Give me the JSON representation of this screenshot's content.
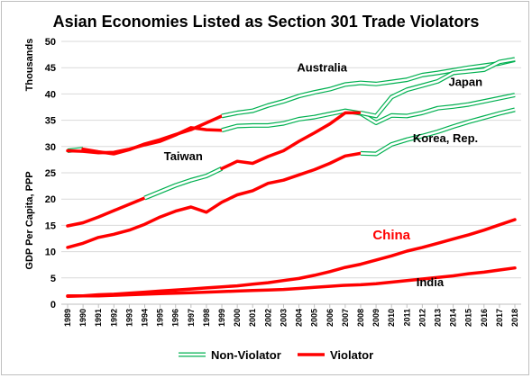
{
  "chart_data": {
    "type": "line",
    "title": "Asian Economies Listed as Section 301 Trade Violators",
    "ylabel": "GDP Per Capita, PPP",
    "y_units_label": "Thousands",
    "xlabel": "",
    "ylim": [
      0,
      50
    ],
    "yticks": [
      0,
      5,
      10,
      15,
      20,
      25,
      30,
      35,
      40,
      45,
      50
    ],
    "x": [
      1989,
      1990,
      1991,
      1992,
      1993,
      1994,
      1995,
      1996,
      1997,
      1998,
      1999,
      2000,
      2001,
      2002,
      2003,
      2004,
      2005,
      2006,
      2007,
      2008,
      2009,
      2010,
      2011,
      2012,
      2013,
      2014,
      2015,
      2016,
      2017,
      2018
    ],
    "grid": true,
    "legend_position": "bottom",
    "colors": {
      "non_violator": "#00b050",
      "violator": "#ff0000",
      "china_label": "#ff0000"
    },
    "legend": [
      {
        "label": "Non-Violator",
        "style": "hollow"
      },
      {
        "label": "Violator",
        "style": "solid"
      }
    ],
    "series": [
      {
        "name": "Australia",
        "values": [
          29.2,
          29.5,
          29.0,
          28.6,
          29.4,
          30.5,
          31.3,
          32.3,
          33.2,
          34.5,
          35.8,
          36.4,
          36.8,
          37.8,
          38.6,
          39.6,
          40.3,
          40.9,
          41.8,
          42.1,
          41.9,
          42.3,
          42.7,
          43.6,
          44.0,
          44.5,
          45.0,
          45.4,
          45.8,
          46.5
        ],
        "status": [
          "nv",
          "nv",
          "v",
          "v",
          "v",
          "v",
          "v",
          "v",
          "v",
          "v",
          "v",
          "nv",
          "nv",
          "nv",
          "nv",
          "nv",
          "nv",
          "nv",
          "nv",
          "nv",
          "nv",
          "nv",
          "nv",
          "nv",
          "nv",
          "nv",
          "nv",
          "nv",
          "nv",
          "nv"
        ]
      },
      {
        "name": "Japan",
        "values": [
          29.2,
          29.1,
          28.8,
          28.9,
          29.5,
          30.3,
          31.0,
          32.2,
          33.6,
          33.2,
          33.1,
          33.9,
          34.0,
          34.0,
          34.4,
          35.2,
          35.6,
          36.2,
          36.8,
          36.3,
          34.5,
          35.9,
          35.8,
          36.4,
          37.3,
          37.6,
          38.0,
          38.6,
          39.2,
          39.8
        ],
        "status": [
          "v",
          "v",
          "v",
          "v",
          "v",
          "v",
          "v",
          "v",
          "v",
          "v",
          "v",
          "nv",
          "nv",
          "nv",
          "nv",
          "nv",
          "nv",
          "nv",
          "nv",
          "nv",
          "nv",
          "nv",
          "nv",
          "nv",
          "nv",
          "nv",
          "nv",
          "nv",
          "nv",
          "nv"
        ]
      },
      {
        "name": "Taiwan",
        "values": [
          14.9,
          15.5,
          16.6,
          17.8,
          19.0,
          20.2,
          21.4,
          22.6,
          23.6,
          24.4,
          25.8,
          27.2,
          26.8,
          28.1,
          29.2,
          31.0,
          32.6,
          34.3,
          36.4,
          36.4,
          35.8,
          39.4,
          40.8,
          41.6,
          42.4,
          44.0,
          44.3,
          44.6,
          46.1,
          46.6
        ],
        "status": [
          "v",
          "v",
          "v",
          "v",
          "v",
          "v",
          "nv",
          "nv",
          "nv",
          "nv",
          "nv",
          "v",
          "v",
          "v",
          "v",
          "v",
          "v",
          "v",
          "v",
          "v",
          "nv",
          "nv",
          "nv",
          "nv",
          "nv",
          "nv",
          "nv",
          "nv",
          "nv",
          "nv"
        ]
      },
      {
        "name": "Korea, Rep.",
        "values": [
          10.8,
          11.6,
          12.7,
          13.3,
          14.1,
          15.2,
          16.6,
          17.7,
          18.5,
          17.5,
          19.4,
          20.8,
          21.6,
          23.0,
          23.6,
          24.6,
          25.6,
          26.8,
          28.2,
          28.7,
          28.6,
          30.4,
          31.3,
          32.0,
          32.8,
          33.8,
          34.7,
          35.5,
          36.3,
          37.0
        ],
        "status": [
          "v",
          "v",
          "v",
          "v",
          "v",
          "v",
          "v",
          "v",
          "v",
          "v",
          "v",
          "v",
          "v",
          "v",
          "v",
          "v",
          "v",
          "v",
          "v",
          "v",
          "nv",
          "nv",
          "nv",
          "nv",
          "nv",
          "nv",
          "nv",
          "nv",
          "nv",
          "nv"
        ]
      },
      {
        "name": "China",
        "values": [
          1.6,
          1.6,
          1.8,
          1.9,
          2.1,
          2.3,
          2.5,
          2.7,
          2.9,
          3.1,
          3.3,
          3.5,
          3.8,
          4.1,
          4.5,
          4.9,
          5.5,
          6.2,
          7.0,
          7.6,
          8.4,
          9.2,
          10.1,
          10.8,
          11.6,
          12.4,
          13.2,
          14.1,
          15.1,
          16.1
        ],
        "status": [
          "v",
          "v",
          "v",
          "v",
          "v",
          "v",
          "v",
          "v",
          "v",
          "v",
          "v",
          "v",
          "v",
          "v",
          "v",
          "v",
          "v",
          "v",
          "v",
          "v",
          "v",
          "v",
          "v",
          "v",
          "v",
          "v",
          "v",
          "v",
          "v",
          "v"
        ]
      },
      {
        "name": "India",
        "values": [
          1.5,
          1.6,
          1.6,
          1.7,
          1.8,
          1.9,
          2.0,
          2.1,
          2.2,
          2.3,
          2.4,
          2.5,
          2.6,
          2.7,
          2.8,
          3.0,
          3.2,
          3.4,
          3.6,
          3.7,
          3.9,
          4.2,
          4.5,
          4.8,
          5.1,
          5.4,
          5.8,
          6.1,
          6.5,
          6.9
        ],
        "status": [
          "v",
          "v",
          "v",
          "v",
          "v",
          "v",
          "v",
          "v",
          "v",
          "v",
          "v",
          "v",
          "v",
          "v",
          "v",
          "v",
          "v",
          "v",
          "v",
          "v",
          "v",
          "v",
          "v",
          "v",
          "v",
          "v",
          "v",
          "v",
          "v",
          "v"
        ]
      }
    ],
    "annotations": [
      {
        "text": "Australia",
        "x": 2005.5,
        "y": 44.3,
        "color": "#000000"
      },
      {
        "text": "Japan",
        "x": 2014.8,
        "y": 41.5,
        "color": "#000000"
      },
      {
        "text": "Taiwan",
        "x": 1996.5,
        "y": 27.4,
        "color": "#000000"
      },
      {
        "text": "Korea, Rep.",
        "x": 2013.5,
        "y": 30.8,
        "color": "#000000"
      },
      {
        "text": "China",
        "x": 2010.0,
        "y": 12.3,
        "color": "#ff0000"
      },
      {
        "text": "India",
        "x": 2012.5,
        "y": 3.4,
        "color": "#000000"
      }
    ]
  }
}
